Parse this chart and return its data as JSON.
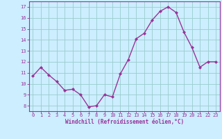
{
  "x": [
    0,
    1,
    2,
    3,
    4,
    5,
    6,
    7,
    8,
    9,
    10,
    11,
    12,
    13,
    14,
    15,
    16,
    17,
    18,
    19,
    20,
    21,
    22,
    23
  ],
  "y": [
    10.7,
    11.5,
    10.8,
    10.2,
    9.4,
    9.5,
    9.0,
    7.9,
    8.0,
    9.0,
    8.8,
    10.9,
    12.2,
    14.1,
    14.6,
    15.8,
    16.6,
    17.0,
    16.5,
    14.7,
    13.3,
    11.5,
    12.0,
    12.0
  ],
  "line_color": "#993399",
  "marker_color": "#993399",
  "bg_color": "#cceeff",
  "grid_color": "#99cccc",
  "xlabel": "Windchill (Refroidissement éolien,°C)",
  "ylabel_ticks": [
    8,
    9,
    10,
    11,
    12,
    13,
    14,
    15,
    16,
    17
  ],
  "xticks": [
    0,
    1,
    2,
    3,
    4,
    5,
    6,
    7,
    8,
    9,
    10,
    11,
    12,
    13,
    14,
    15,
    16,
    17,
    18,
    19,
    20,
    21,
    22,
    23
  ],
  "ylim": [
    7.5,
    17.5
  ],
  "xlim": [
    -0.5,
    23.5
  ],
  "tick_label_color": "#993399",
  "xlabel_color": "#993399",
  "tick_fontsize": 5.0,
  "xlabel_fontsize": 5.5
}
